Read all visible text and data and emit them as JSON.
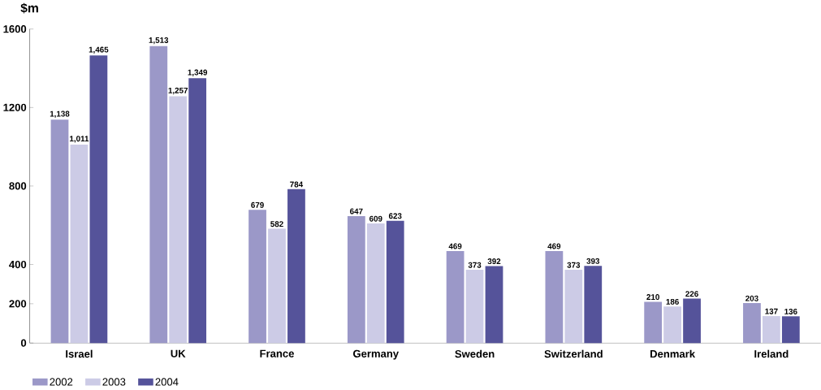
{
  "chart_data": {
    "type": "bar",
    "ylabel": "$m",
    "categories": [
      "Israel",
      "UK",
      "France",
      "Germany",
      "Sweden",
      "Switzerland",
      "Denmark",
      "Ireland"
    ],
    "series": [
      {
        "name": "2002",
        "color": "#9b98c8",
        "values": [
          1138,
          1513,
          679,
          647,
          469,
          469,
          210,
          203
        ],
        "value_labels": [
          "1,138",
          "1,513",
          "679",
          "647",
          "469",
          "469",
          "210",
          "203"
        ]
      },
      {
        "name": "2003",
        "color": "#cccbe6",
        "values": [
          1011,
          1257,
          582,
          609,
          373,
          373,
          186,
          137
        ],
        "value_labels": [
          "1,011",
          "1,257",
          "582",
          "609",
          "373",
          "373",
          "186",
          "137"
        ]
      },
      {
        "name": "2004",
        "color": "#55539a",
        "values": [
          1465,
          1349,
          784,
          623,
          392,
          393,
          226,
          136
        ],
        "value_labels": [
          "1,465",
          "1,349",
          "784",
          "623",
          "392",
          "393",
          "226",
          "136"
        ]
      }
    ],
    "ylim": [
      0,
      1600
    ],
    "yticks": [
      0,
      200,
      400,
      800,
      1200,
      1600
    ],
    "legend": "bottom left",
    "grid": false
  }
}
